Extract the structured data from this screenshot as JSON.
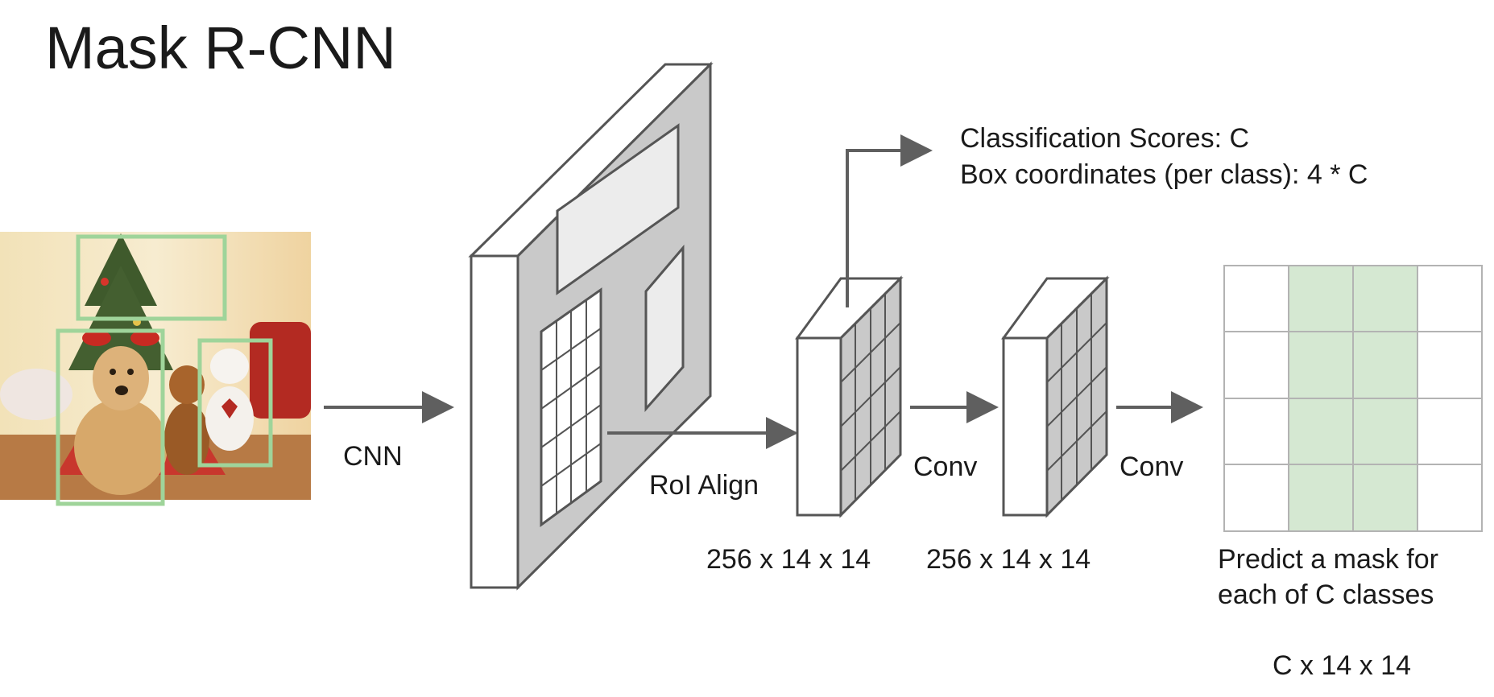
{
  "title": "Mask R-CNN",
  "labels": {
    "cnn": "CNN",
    "roi_align": "RoI Align",
    "conv1": "Conv",
    "conv2": "Conv",
    "shape1": "256 x 14 x 14",
    "shape2": "256 x 14 x 14",
    "classification": "Classification Scores: C",
    "box_coords": "Box coordinates (per class): 4 * C",
    "mask_line1": "Predict a mask for",
    "mask_line2": "each of C classes",
    "mask_shape": "C x 14 x 14"
  },
  "colors": {
    "bbox_green": "#9fd49a",
    "mask_fill": "#d5e8d2",
    "feature_gray": "#c9c9c9",
    "arrow_gray": "#5f5f5f"
  }
}
